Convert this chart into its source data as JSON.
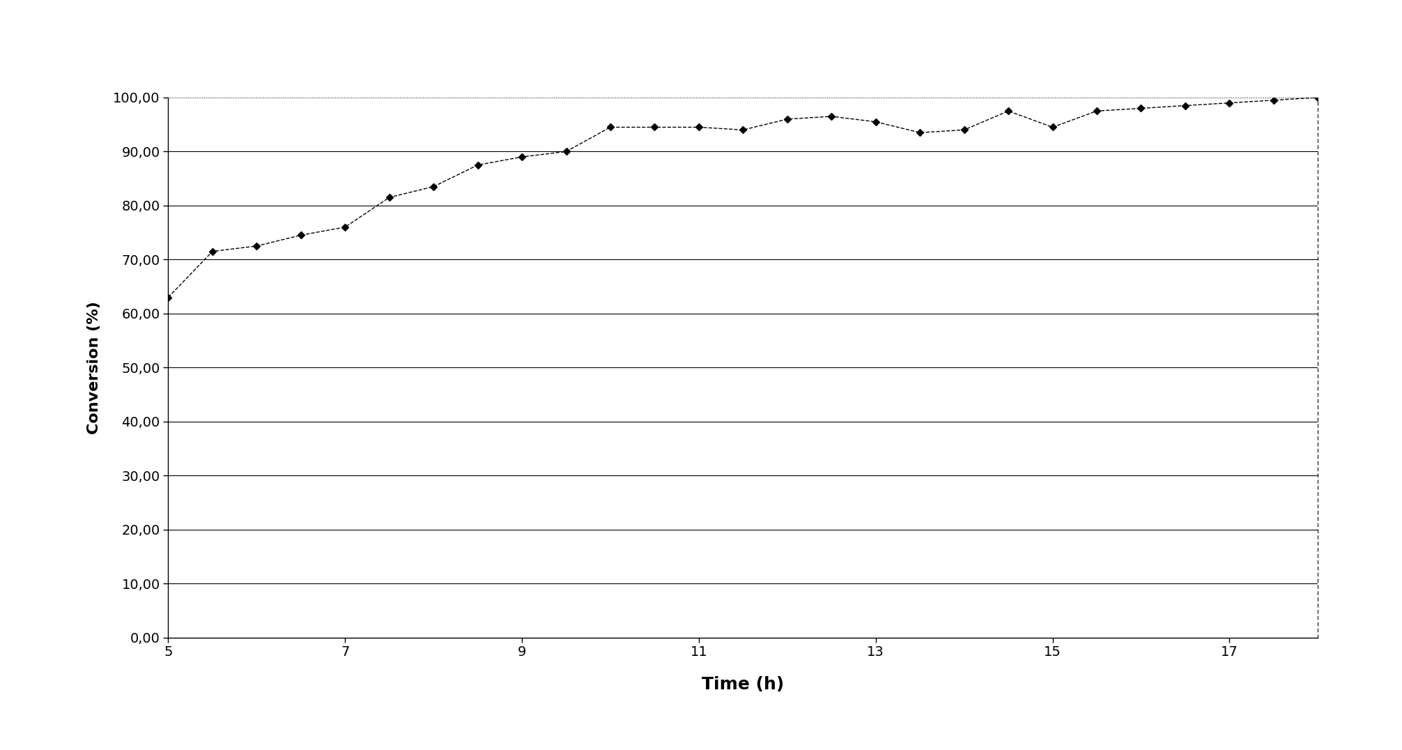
{
  "x": [
    5.0,
    5.5,
    6.0,
    6.5,
    7.0,
    7.5,
    8.0,
    8.5,
    9.0,
    9.5,
    10.0,
    10.5,
    11.0,
    11.5,
    12.0,
    12.5,
    13.0,
    13.5,
    14.0,
    14.5,
    15.0,
    15.5,
    16.0,
    16.5,
    17.0,
    17.5,
    18.0
  ],
  "y": [
    63.0,
    71.5,
    72.5,
    74.5,
    76.0,
    81.5,
    83.5,
    87.5,
    89.0,
    90.0,
    94.5,
    94.5,
    94.5,
    94.0,
    96.0,
    96.5,
    95.5,
    93.5,
    94.0,
    97.5,
    94.5,
    97.5,
    98.0,
    98.5,
    99.0,
    99.5,
    100.0
  ],
  "xlabel": "Time (h)",
  "ylabel": "Conversion (%)",
  "xlim": [
    5,
    18
  ],
  "ylim": [
    0,
    100
  ],
  "xticks": [
    5,
    7,
    9,
    11,
    13,
    15,
    17
  ],
  "yticks": [
    0,
    10,
    20,
    30,
    40,
    50,
    60,
    70,
    80,
    90,
    100
  ],
  "ytick_labels": [
    "0,00",
    "10,00",
    "20,00",
    "30,00",
    "40,00",
    "50,00",
    "60,00",
    "70,00",
    "80,00",
    "90,00",
    "100,00"
  ],
  "line_color": "#000000",
  "marker": "D",
  "marker_size": 5,
  "line_style": "--",
  "background_color": "#ffffff",
  "grid_color": "#000000",
  "xlabel_fontsize": 18,
  "ylabel_fontsize": 16,
  "tick_fontsize": 14
}
